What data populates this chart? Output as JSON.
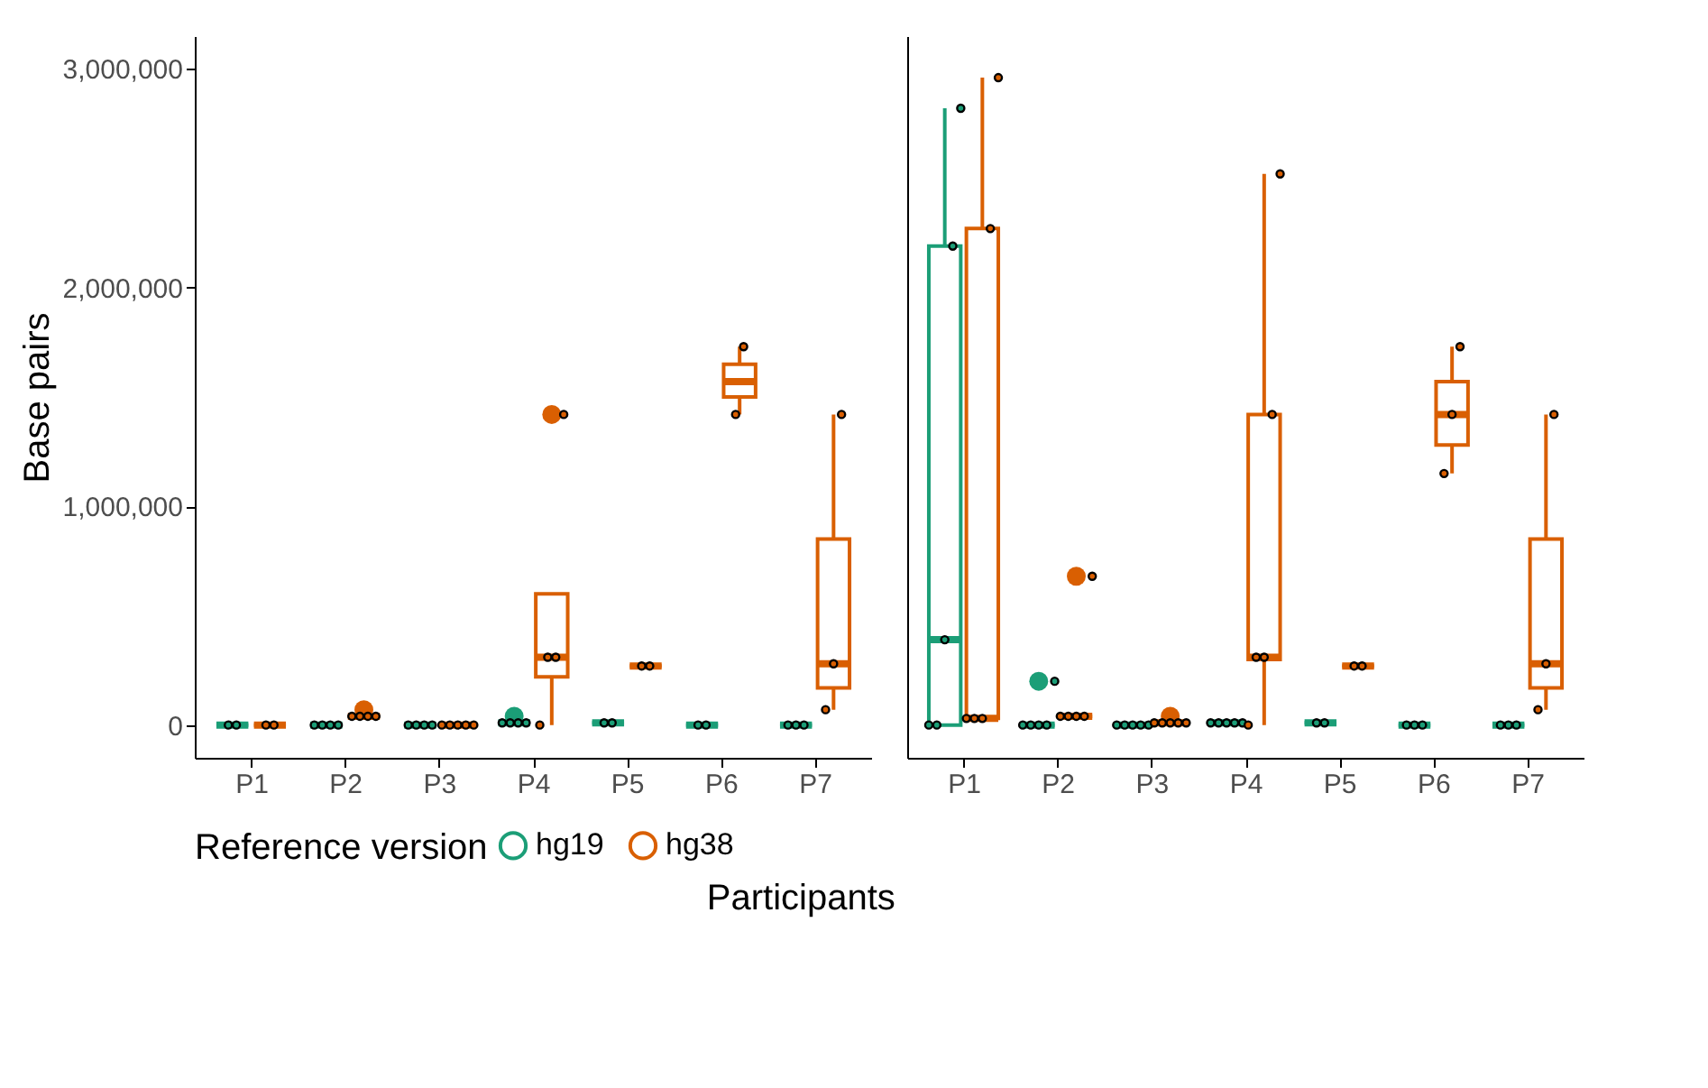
{
  "chart_data": [
    {
      "type": "box",
      "xlabel": "Participants",
      "ylabel": "Base pairs",
      "legend": "bottom",
      "legend_title": "Reference version",
      "categories": [
        "P1",
        "P2",
        "P3",
        "P4",
        "P5",
        "P6",
        "P7"
      ],
      "ylim": [
        -150000,
        3150000
      ],
      "yticks": [
        0,
        {
          "value": 1000000,
          "label": "1,000,000"
        },
        {
          "value": 2000000,
          "label": "2,000,000"
        },
        {
          "value": 3000000,
          "label": "3,000,000"
        }
      ],
      "series": [
        {
          "name": "hg19",
          "color": "#1b9e77",
          "boxes": [
            {
              "low": 0,
              "q1": 0,
              "median": 0,
              "q3": 0,
              "high": 0
            },
            {
              "low": 0,
              "q1": 0,
              "median": 0,
              "q3": 0,
              "high": 0
            },
            {
              "low": 0,
              "q1": 0,
              "median": 0,
              "q3": 0,
              "high": 0
            },
            {
              "low": 10000,
              "q1": 10000,
              "median": 10000,
              "q3": 10000,
              "high": 10000,
              "outliers": [
                40000
              ]
            },
            {
              "low": 10000,
              "q1": 10000,
              "median": 10000,
              "q3": 10000,
              "high": 10000
            },
            {
              "low": 0,
              "q1": 0,
              "median": 0,
              "q3": 0,
              "high": 0
            },
            {
              "low": 0,
              "q1": 0,
              "median": 0,
              "q3": 0,
              "high": 0
            }
          ]
        },
        {
          "name": "hg38",
          "color": "#d95f02",
          "boxes": [
            {
              "low": 0,
              "q1": 0,
              "median": 0,
              "q3": 0,
              "high": 0
            },
            {
              "low": 40000,
              "q1": 40000,
              "median": 40000,
              "q3": 40000,
              "high": 40000,
              "outliers": [
                70000
              ]
            },
            {
              "low": 0,
              "q1": 0,
              "median": 0,
              "q3": 0,
              "high": 0
            },
            {
              "low": 0,
              "q1": 220000,
              "median": 310000,
              "q3": 600000,
              "high": 600000,
              "outliers": [
                1420000
              ]
            },
            {
              "low": 270000,
              "q1": 270000,
              "median": 270000,
              "q3": 270000,
              "high": 270000
            },
            {
              "low": 1420000,
              "q1": 1500000,
              "median": 1570000,
              "q3": 1650000,
              "high": 1730000
            },
            {
              "low": 70000,
              "q1": 170000,
              "median": 280000,
              "q3": 850000,
              "high": 1420000
            }
          ]
        },
        {
          "type": "scatter",
          "color": "#1b9e77",
          "x": [
            "P1",
            "P1",
            "P2",
            "P2",
            "P2",
            "P2",
            "P3",
            "P3",
            "P3",
            "P3",
            "P4",
            "P4",
            "P4",
            "P4",
            "P5",
            "P5",
            "P6",
            "P6",
            "P7",
            "P7",
            "P7"
          ],
          "values": [
            0,
            0,
            0,
            0,
            0,
            0,
            0,
            0,
            0,
            0,
            10000,
            10000,
            10000,
            10000,
            10000,
            10000,
            0,
            0,
            0,
            0,
            0
          ]
        },
        {
          "type": "scatter",
          "color": "#d95f02",
          "x": [
            "P1",
            "P1",
            "P2",
            "P2",
            "P2",
            "P2",
            "P3",
            "P3",
            "P3",
            "P3",
            "P3",
            "P4",
            "P4",
            "P4",
            "P4",
            "P5",
            "P5",
            "P6",
            "P6",
            "P7",
            "P7",
            "P7"
          ],
          "values": [
            0,
            0,
            40000,
            40000,
            40000,
            40000,
            0,
            0,
            0,
            0,
            0,
            0,
            310000,
            310000,
            1420000,
            270000,
            270000,
            1420000,
            1730000,
            70000,
            280000,
            1420000
          ]
        }
      ]
    },
    {
      "type": "box",
      "tick_labels": "x",
      "categories": [
        "P1",
        "P2",
        "P3",
        "P4",
        "P5",
        "P6",
        "P7"
      ],
      "ylim": [
        -150000,
        3150000
      ],
      "series": [
        {
          "name": "hg19",
          "color": "#1b9e77",
          "boxes": [
            {
              "low": 0,
              "q1": 0,
              "median": 390000,
              "q3": 2190000,
              "high": 2820000
            },
            {
              "low": 0,
              "q1": 0,
              "median": 0,
              "q3": 0,
              "high": 0,
              "outliers": [
                200000
              ]
            },
            {
              "low": 0,
              "q1": 0,
              "median": 0,
              "q3": 0,
              "high": 0
            },
            {
              "low": 10000,
              "q1": 10000,
              "median": 10000,
              "q3": 10000,
              "high": 10000
            },
            {
              "low": 10000,
              "q1": 10000,
              "median": 10000,
              "q3": 10000,
              "high": 10000
            },
            {
              "low": 0,
              "q1": 0,
              "median": 0,
              "q3": 0,
              "high": 0
            },
            {
              "low": 0,
              "q1": 0,
              "median": 0,
              "q3": 0,
              "high": 0
            }
          ]
        },
        {
          "name": "hg38",
          "color": "#d95f02",
          "boxes": [
            {
              "low": 30000,
              "q1": 30000,
              "median": 30000,
              "q3": 2270000,
              "high": 2960000
            },
            {
              "low": 40000,
              "q1": 40000,
              "median": 40000,
              "q3": 40000,
              "high": 40000,
              "outliers": [
                680000
              ]
            },
            {
              "low": 10000,
              "q1": 10000,
              "median": 10000,
              "q3": 10000,
              "high": 10000,
              "outliers": [
                40000
              ]
            },
            {
              "low": 0,
              "q1": 300000,
              "median": 310000,
              "q3": 1420000,
              "high": 2520000
            },
            {
              "low": 270000,
              "q1": 270000,
              "median": 270000,
              "q3": 270000,
              "high": 270000
            },
            {
              "low": 1150000,
              "q1": 1280000,
              "median": 1420000,
              "q3": 1570000,
              "high": 1730000
            },
            {
              "low": 70000,
              "q1": 170000,
              "median": 280000,
              "q3": 850000,
              "high": 1420000
            }
          ]
        },
        {
          "type": "scatter",
          "color": "#1b9e77",
          "x": [
            "P1",
            "P1",
            "P1",
            "P1",
            "P1",
            "P2",
            "P2",
            "P2",
            "P2",
            "P2",
            "P3",
            "P3",
            "P3",
            "P3",
            "P3",
            "P4",
            "P4",
            "P4",
            "P4",
            "P4",
            "P5",
            "P5",
            "P6",
            "P6",
            "P6",
            "P7",
            "P7",
            "P7"
          ],
          "values": [
            0,
            0,
            390000,
            2190000,
            2820000,
            0,
            0,
            0,
            0,
            200000,
            0,
            0,
            0,
            0,
            0,
            10000,
            10000,
            10000,
            10000,
            10000,
            10000,
            10000,
            0,
            0,
            0,
            0,
            0,
            0
          ]
        },
        {
          "type": "scatter",
          "color": "#d95f02",
          "x": [
            "P1",
            "P1",
            "P1",
            "P1",
            "P1",
            "P2",
            "P2",
            "P2",
            "P2",
            "P2",
            "P3",
            "P3",
            "P3",
            "P3",
            "P3",
            "P4",
            "P4",
            "P4",
            "P4",
            "P4",
            "P5",
            "P5",
            "P6",
            "P6",
            "P6",
            "P7",
            "P7",
            "P7"
          ],
          "values": [
            30000,
            30000,
            30000,
            2270000,
            2960000,
            40000,
            40000,
            40000,
            40000,
            680000,
            10000,
            10000,
            10000,
            10000,
            10000,
            0,
            310000,
            310000,
            1420000,
            2520000,
            270000,
            270000,
            1150000,
            1420000,
            1730000,
            70000,
            280000,
            1420000
          ]
        }
      ]
    }
  ]
}
